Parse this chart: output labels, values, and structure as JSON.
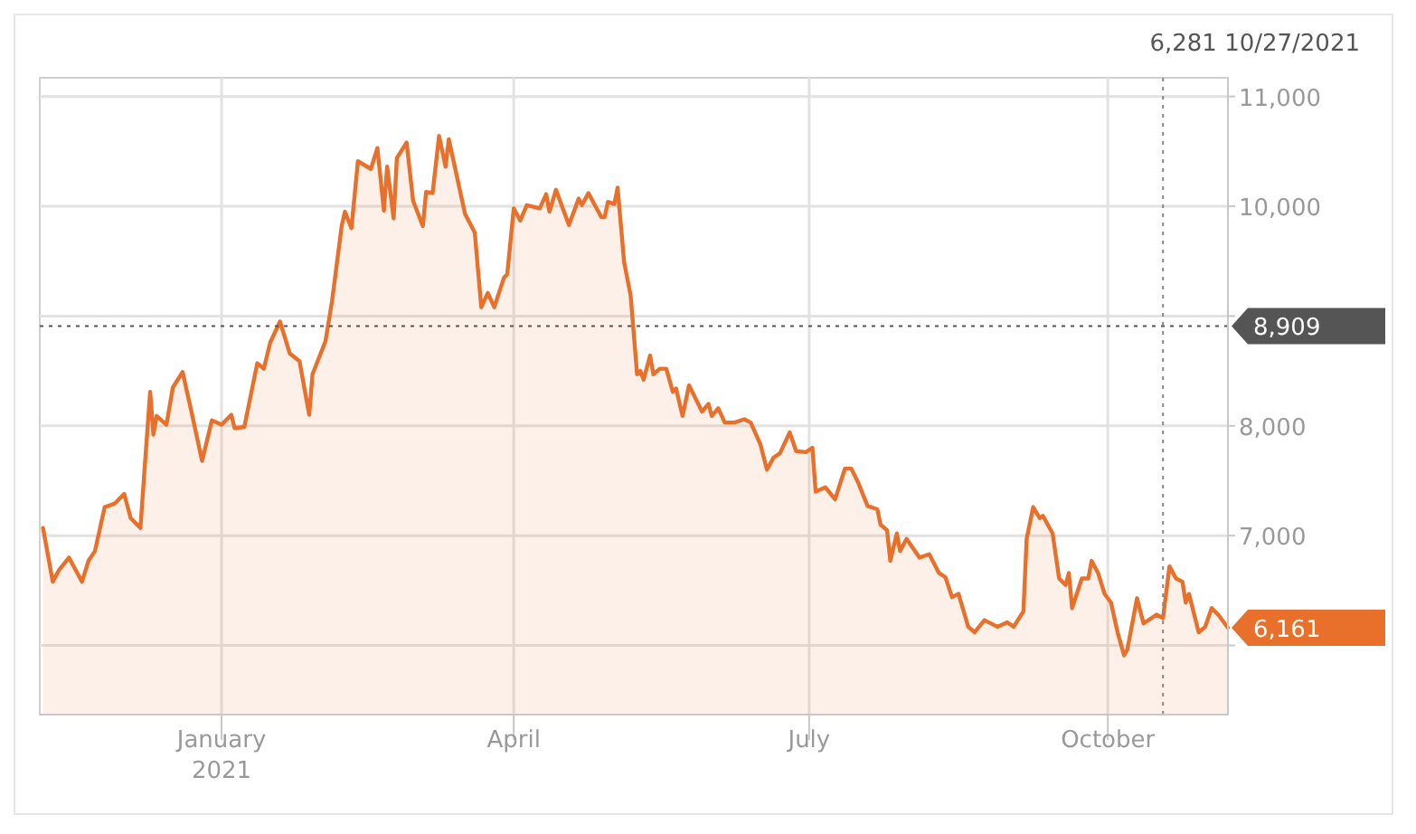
{
  "chart_data": {
    "type": "area",
    "x": [
      "2020-11-07",
      "2020-11-10",
      "2020-11-12",
      "2020-11-15",
      "2020-11-19",
      "2020-11-21",
      "2020-11-23",
      "2020-11-26",
      "2020-11-29",
      "2020-12-02",
      "2020-12-04",
      "2020-12-07",
      "2020-12-08",
      "2020-12-10",
      "2020-12-11",
      "2020-12-12",
      "2020-12-15",
      "2020-12-17",
      "2020-12-20",
      "2020-12-23",
      "2020-12-26",
      "2020-12-29",
      "2021-01-01",
      "2021-01-04",
      "2021-01-05",
      "2021-01-08",
      "2021-01-12",
      "2021-01-14",
      "2021-01-16",
      "2021-01-19",
      "2021-01-22",
      "2021-01-25",
      "2021-01-28",
      "2021-01-29",
      "2021-02-02",
      "2021-02-04",
      "2021-02-07",
      "2021-02-08",
      "2021-02-10",
      "2021-02-12",
      "2021-02-16",
      "2021-02-18",
      "2021-02-20",
      "2021-02-21",
      "2021-02-23",
      "2021-02-24",
      "2021-02-27",
      "2021-03-01",
      "2021-03-04",
      "2021-03-05",
      "2021-03-07",
      "2021-03-09",
      "2021-03-11",
      "2021-03-12",
      "2021-03-17",
      "2021-03-20",
      "2021-03-22",
      "2021-03-24",
      "2021-03-26",
      "2021-03-29",
      "2021-03-30",
      "2021-04-01",
      "2021-04-03",
      "2021-04-05",
      "2021-04-09",
      "2021-04-11",
      "2021-04-12",
      "2021-04-14",
      "2021-04-18",
      "2021-04-21",
      "2021-04-22",
      "2021-04-24",
      "2021-04-28",
      "2021-04-29",
      "2021-04-30",
      "2021-05-02",
      "2021-05-03",
      "2021-05-05",
      "2021-05-07",
      "2021-05-09",
      "2021-05-10",
      "2021-05-11",
      "2021-05-13",
      "2021-05-14",
      "2021-05-16",
      "2021-05-18",
      "2021-05-20",
      "2021-05-21",
      "2021-05-23",
      "2021-05-25",
      "2021-05-29",
      "2021-05-31",
      "2021-06-01",
      "2021-06-03",
      "2021-06-05",
      "2021-06-08",
      "2021-06-11",
      "2021-06-13",
      "2021-06-16",
      "2021-06-18",
      "2021-06-20",
      "2021-06-22",
      "2021-06-25",
      "2021-06-27",
      "2021-06-30",
      "2021-07-02",
      "2021-07-03",
      "2021-07-06",
      "2021-07-09",
      "2021-07-12",
      "2021-07-14",
      "2021-07-16",
      "2021-07-19",
      "2021-07-22",
      "2021-07-23",
      "2021-07-25",
      "2021-07-26",
      "2021-07-28",
      "2021-07-29",
      "2021-07-31",
      "2021-08-04",
      "2021-08-07",
      "2021-08-10",
      "2021-08-12",
      "2021-08-14",
      "2021-08-16",
      "2021-08-19",
      "2021-08-21",
      "2021-08-24",
      "2021-08-28",
      "2021-08-31",
      "2021-09-02",
      "2021-09-05",
      "2021-09-06",
      "2021-09-08",
      "2021-09-10",
      "2021-09-11",
      "2021-09-14",
      "2021-09-16",
      "2021-09-18",
      "2021-09-19",
      "2021-09-20",
      "2021-09-23",
      "2021-09-25",
      "2021-09-26",
      "2021-09-28",
      "2021-09-30",
      "2021-10-02",
      "2021-10-04",
      "2021-10-06",
      "2021-10-07",
      "2021-10-10",
      "2021-10-12",
      "2021-10-16",
      "2021-10-18",
      "2021-10-20",
      "2021-10-22",
      "2021-10-24",
      "2021-10-25",
      "2021-10-26",
      "2021-10-29",
      "2021-10-31",
      "2021-11-02",
      "2021-11-04",
      "2021-11-07"
    ],
    "series": [
      {
        "color": "#e8702a",
        "values": [
          7070,
          6580,
          6690,
          6800,
          6580,
          6770,
          6860,
          7260,
          7290,
          7380,
          7160,
          7070,
          7490,
          8310,
          7920,
          8090,
          8010,
          8350,
          8490,
          8090,
          7680,
          8050,
          8010,
          8100,
          7980,
          7990,
          8570,
          8520,
          8760,
          8950,
          8660,
          8590,
          8100,
          8470,
          8770,
          9130,
          9820,
          9950,
          9800,
          10410,
          10340,
          10530,
          9960,
          10360,
          9890,
          10440,
          10580,
          10050,
          9820,
          10130,
          10120,
          10640,
          10360,
          10610,
          9930,
          9760,
          9080,
          9210,
          9080,
          9350,
          9380,
          9980,
          9870,
          10010,
          9980,
          10110,
          9950,
          10150,
          9830,
          10070,
          10010,
          10120,
          9900,
          9900,
          10040,
          10020,
          10170,
          9490,
          9190,
          8470,
          8500,
          8420,
          8640,
          8470,
          8520,
          8520,
          8310,
          8340,
          8090,
          8370,
          8130,
          8200,
          8090,
          8160,
          8030,
          8030,
          8060,
          8030,
          7830,
          7600,
          7710,
          7750,
          7940,
          7770,
          7760,
          7800,
          7400,
          7440,
          7330,
          7610,
          7610,
          7490,
          7270,
          7240,
          7100,
          7050,
          6770,
          7020,
          6860,
          6970,
          6800,
          6830,
          6660,
          6620,
          6440,
          6470,
          6170,
          6120,
          6230,
          6170,
          6210,
          6170,
          6310,
          6970,
          7260,
          7160,
          7180,
          7020,
          6610,
          6550,
          6660,
          6340,
          6610,
          6610,
          6770,
          6660,
          6470,
          6390,
          6120,
          5910,
          5960,
          6430,
          6200,
          6280,
          6250,
          6720,
          6610,
          6580,
          6390,
          6470,
          6120,
          6170,
          6340,
          6280,
          6161
        ]
      }
    ],
    "xlim": [
      "2020-11-06",
      "2021-11-07"
    ],
    "xticks": [
      {
        "value": "2021-01-01",
        "label": "January\n2021"
      },
      {
        "value": "2021-04-01",
        "label": "April"
      },
      {
        "value": "2021-07-01",
        "label": "July"
      },
      {
        "value": "2021-10-01",
        "label": "October"
      }
    ],
    "ylim": [
      5370,
      11170
    ],
    "yticks": [
      {
        "value": 6000,
        "label": null
      },
      {
        "value": 7000,
        "label": "7,000"
      },
      {
        "value": 8000,
        "label": "8,000"
      },
      {
        "value": 9000,
        "label": null
      },
      {
        "value": 10000,
        "label": "10,000"
      },
      {
        "value": 11000,
        "label": "11,000"
      }
    ],
    "grid": true,
    "line_style": "solid",
    "ref_lines": [
      {
        "axis": "y",
        "value": 8909,
        "label": "8,909",
        "color": "#555555",
        "line_style": "dotted"
      },
      {
        "axis": "x",
        "value": "2021-10-18",
        "line_style": "dotted",
        "color": "#888888"
      }
    ],
    "annotations": [
      "6,281",
      "10/27/2021",
      {
        "text": "6,161",
        "x": "2021-11-07",
        "y": 6161
      }
    ]
  }
}
